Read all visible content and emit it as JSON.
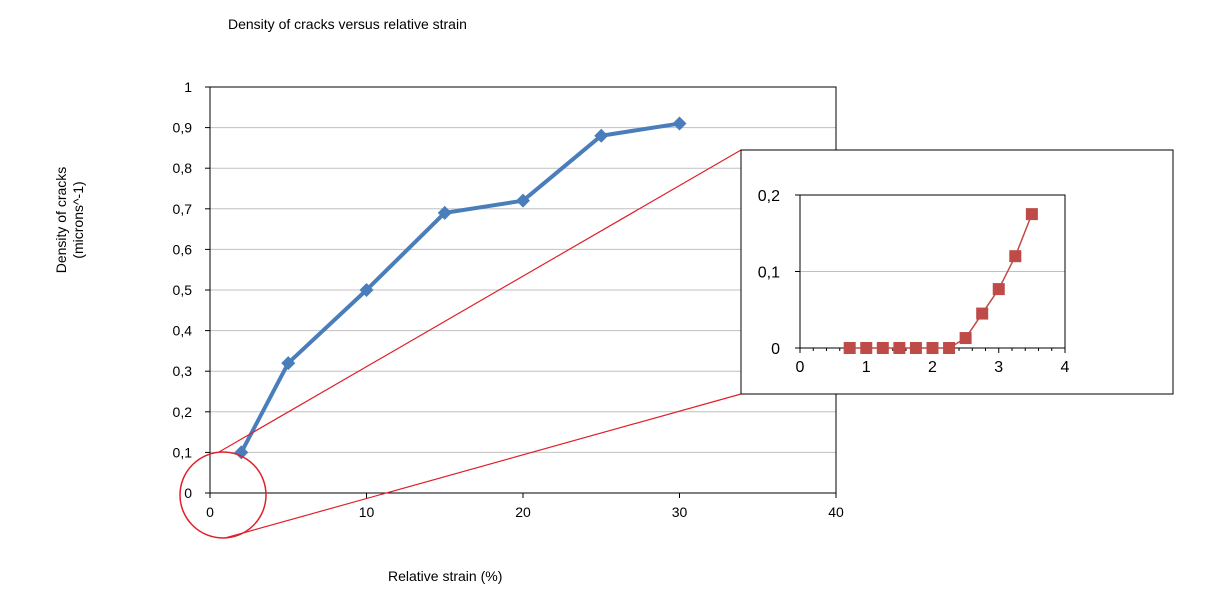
{
  "chart_data": [
    {
      "type": "line",
      "title": "Density of cracks versus relative strain",
      "xlabel": "Relative strain (%)",
      "ylabel_lines": [
        "Density of cracks",
        "(microns^-1)"
      ],
      "xlim": [
        0,
        40
      ],
      "ylim": [
        0,
        1
      ],
      "xticks": [
        0,
        10,
        20,
        30,
        40
      ],
      "yticks": [
        0,
        0.1,
        0.2,
        0.3,
        0.4,
        0.5,
        0.6,
        0.7,
        0.8,
        0.9,
        1
      ],
      "ytick_labels": [
        "0",
        "0,1",
        "0,2",
        "0,3",
        "0,4",
        "0,5",
        "0,6",
        "0,7",
        "0,8",
        "0,9",
        "1"
      ],
      "grid": true,
      "series": [
        {
          "marker": "diamond",
          "color": "#4a7ebb",
          "x": [
            2,
            5,
            10,
            15,
            20,
            25,
            30
          ],
          "y": [
            0.1,
            0.32,
            0.5,
            0.69,
            0.72,
            0.88,
            0.91
          ]
        }
      ]
    },
    {
      "type": "line",
      "role": "inset zoom of the low-strain region",
      "xlim": [
        0,
        4
      ],
      "ylim": [
        0,
        0.2
      ],
      "xticks": [
        0,
        1,
        2,
        3,
        4
      ],
      "yticks": [
        0,
        0.1,
        0.2
      ],
      "ytick_labels": [
        "0",
        "0,1",
        "0,2"
      ],
      "grid": true,
      "series": [
        {
          "marker": "square",
          "color": "#be4b48",
          "x": [
            0.75,
            1.0,
            1.25,
            1.5,
            1.75,
            2.0,
            2.25,
            2.5,
            2.75,
            3.0,
            3.25,
            3.5
          ],
          "y": [
            0,
            0,
            0,
            0,
            0,
            0,
            0,
            0.013,
            0.045,
            0.077,
            0.12,
            0.175
          ]
        }
      ]
    }
  ],
  "colors": {
    "main_series": "#4a7ebb",
    "inset_series": "#be4b48",
    "zoom_callout": "#e0202a",
    "gridline": "#c0c0c0"
  }
}
